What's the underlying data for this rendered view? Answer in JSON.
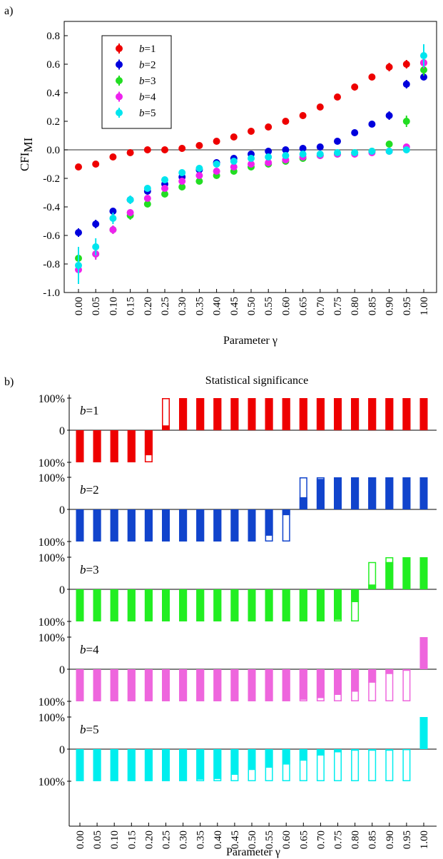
{
  "panel_a": {
    "label": "a)",
    "chart_data": {
      "type": "scatter",
      "xlabel": "Parameter γ",
      "ylabel": "CFI",
      "ylabel_sub": "MI",
      "x": [
        0.0,
        0.05,
        0.1,
        0.15,
        0.2,
        0.25,
        0.3,
        0.35,
        0.4,
        0.45,
        0.5,
        0.55,
        0.6,
        0.65,
        0.7,
        0.75,
        0.8,
        0.85,
        0.9,
        0.95,
        1.0
      ],
      "x_tick_labels": [
        "0.00",
        "0.05",
        "0.10",
        "0.15",
        "0.20",
        "0.25",
        "0.30",
        "0.35",
        "0.40",
        "0.45",
        "0.50",
        "0.55",
        "0.60",
        "0.65",
        "0.70",
        "0.75",
        "0.80",
        "0.85",
        "0.90",
        "0.95",
        "1.00"
      ],
      "ylim": [
        -1.0,
        0.9
      ],
      "y_ticks": [
        -1.0,
        -0.8,
        -0.6,
        -0.4,
        -0.2,
        0.0,
        0.2,
        0.4,
        0.6,
        0.8
      ],
      "y_tick_labels": [
        "-1.0",
        "-0.8",
        "-0.6",
        "-0.4",
        "-0.2",
        "0.0",
        "0.2",
        "0.4",
        "0.6",
        "0.8"
      ],
      "zero_line": true,
      "legend_position": "top-left",
      "series": [
        {
          "name": "b=1",
          "color": "#ee0000",
          "values": [
            -0.12,
            -0.1,
            -0.05,
            -0.02,
            0.0,
            0.0,
            0.01,
            0.03,
            0.06,
            0.09,
            0.13,
            0.16,
            0.2,
            0.24,
            0.3,
            0.37,
            0.44,
            0.51,
            0.58,
            0.6,
            0.61
          ],
          "errors": [
            0.015,
            0.01,
            0.01,
            0.01,
            0.01,
            0.01,
            0.01,
            0.01,
            0.01,
            0.01,
            0.01,
            0.01,
            0.01,
            0.01,
            0.01,
            0.01,
            0.025,
            0.015,
            0.03,
            0.03,
            0.02
          ]
        },
        {
          "name": "b=2",
          "color": "#0000dd",
          "values": [
            -0.58,
            -0.52,
            -0.43,
            -0.35,
            -0.29,
            -0.24,
            -0.19,
            -0.14,
            -0.09,
            -0.06,
            -0.03,
            -0.01,
            0.0,
            0.01,
            0.02,
            0.06,
            0.12,
            0.18,
            0.24,
            0.46,
            0.51
          ],
          "errors": [
            0.03,
            0.03,
            0.02,
            0.02,
            0.02,
            0.02,
            0.01,
            0.01,
            0.01,
            0.01,
            0.01,
            0.01,
            0.01,
            0.01,
            0.01,
            0.015,
            0.02,
            0.02,
            0.03,
            0.03,
            0.02
          ]
        },
        {
          "name": "b=3",
          "color": "#22dd22",
          "values": [
            -0.76,
            -0.73,
            -0.56,
            -0.46,
            -0.38,
            -0.31,
            -0.26,
            -0.22,
            -0.18,
            -0.15,
            -0.12,
            -0.1,
            -0.08,
            -0.06,
            -0.04,
            -0.03,
            -0.02,
            -0.01,
            0.04,
            0.2,
            0.56
          ],
          "errors": [
            0.04,
            0.04,
            0.03,
            0.03,
            0.02,
            0.02,
            0.02,
            0.02,
            0.01,
            0.01,
            0.01,
            0.01,
            0.01,
            0.01,
            0.01,
            0.01,
            0.01,
            0.01,
            0.02,
            0.04,
            0.04
          ]
        },
        {
          "name": "b=4",
          "color": "#ee22ee",
          "values": [
            -0.84,
            -0.73,
            -0.56,
            -0.44,
            -0.34,
            -0.27,
            -0.22,
            -0.18,
            -0.15,
            -0.12,
            -0.1,
            -0.09,
            -0.07,
            -0.05,
            -0.04,
            -0.03,
            -0.03,
            -0.02,
            -0.01,
            0.02,
            0.61
          ],
          "errors": [
            0.04,
            0.04,
            0.03,
            0.02,
            0.02,
            0.02,
            0.02,
            0.01,
            0.01,
            0.01,
            0.01,
            0.01,
            0.01,
            0.01,
            0.01,
            0.01,
            0.01,
            0.01,
            0.01,
            0.01,
            0.04
          ]
        },
        {
          "name": "b=5",
          "color": "#00e5ee",
          "values": [
            -0.81,
            -0.68,
            -0.48,
            -0.35,
            -0.27,
            -0.21,
            -0.16,
            -0.13,
            -0.1,
            -0.08,
            -0.06,
            -0.05,
            -0.04,
            -0.03,
            -0.03,
            -0.02,
            -0.02,
            -0.01,
            -0.01,
            0.0,
            0.66
          ],
          "errors": [
            0.13,
            0.06,
            0.04,
            0.03,
            0.02,
            0.02,
            0.02,
            0.01,
            0.01,
            0.01,
            0.01,
            0.01,
            0.01,
            0.01,
            0.01,
            0.01,
            0.01,
            0.01,
            0.01,
            0.01,
            0.08
          ]
        }
      ]
    }
  },
  "panel_b": {
    "label": "b)",
    "chart_data": {
      "type": "bar",
      "title": "Statistical significance",
      "xlabel": "Parameter γ",
      "x_tick_labels": [
        "0.00",
        "0.05",
        "0.10",
        "0.15",
        "0.20",
        "0.25",
        "0.30",
        "0.35",
        "0.40",
        "0.45",
        "0.50",
        "0.55",
        "0.60",
        "0.65",
        "0.70",
        "0.75",
        "0.80",
        "0.85",
        "0.90",
        "0.95",
        "1.00"
      ],
      "y_tick_labels": [
        "100%",
        "0",
        "100%"
      ],
      "ylim": [
        -100,
        100
      ],
      "note": "each bar: outline = percent of runs with a given sign; filled part = percent significant; positive up, negative down",
      "series": [
        {
          "name": "b=1",
          "prefix": "b",
          "suffix": "=1",
          "color": "#ee0000",
          "outline": [
            -100,
            -100,
            -100,
            -100,
            -100,
            100,
            100,
            100,
            100,
            100,
            100,
            100,
            100,
            100,
            100,
            100,
            100,
            100,
            100,
            100,
            100
          ],
          "fill": [
            -100,
            -100,
            -100,
            -100,
            -78,
            15,
            100,
            100,
            100,
            100,
            100,
            100,
            100,
            100,
            100,
            100,
            100,
            100,
            100,
            100,
            100
          ]
        },
        {
          "name": "b=2",
          "prefix": "b",
          "suffix": "=2",
          "color": "#1144cc",
          "outline": [
            -100,
            -100,
            -100,
            -100,
            -100,
            -100,
            -100,
            -100,
            -100,
            -100,
            -100,
            -100,
            -100,
            100,
            100,
            100,
            100,
            100,
            100,
            100,
            100
          ],
          "fill": [
            -100,
            -100,
            -100,
            -100,
            -100,
            -100,
            -100,
            -100,
            -100,
            -100,
            -100,
            -82,
            -18,
            38,
            95,
            100,
            100,
            100,
            100,
            100,
            100
          ]
        },
        {
          "name": "b=3",
          "prefix": "b",
          "suffix": "=3",
          "color": "#22ee22",
          "outline": [
            -100,
            -100,
            -100,
            -100,
            -100,
            -100,
            -100,
            -100,
            -100,
            -100,
            -100,
            -100,
            -100,
            -100,
            -100,
            -100,
            -100,
            85,
            100,
            100,
            100
          ],
          "fill": [
            -100,
            -100,
            -100,
            -100,
            -100,
            -100,
            -100,
            -100,
            -100,
            -100,
            -100,
            -100,
            -100,
            -100,
            -100,
            -95,
            -40,
            15,
            85,
            100,
            100
          ]
        },
        {
          "name": "b=4",
          "prefix": "b",
          "suffix": "=4",
          "color": "#ee66dd",
          "outline": [
            -100,
            -100,
            -100,
            -100,
            -100,
            -100,
            -100,
            -100,
            -100,
            -100,
            -100,
            -100,
            -100,
            -100,
            -100,
            -100,
            -100,
            -100,
            -100,
            -100,
            100
          ],
          "fill": [
            -100,
            -100,
            -100,
            -100,
            -100,
            -100,
            -100,
            -100,
            -100,
            -100,
            -100,
            -100,
            -100,
            -95,
            -90,
            -80,
            -70,
            -42,
            -15,
            -5,
            100
          ]
        },
        {
          "name": "b=5",
          "prefix": "b",
          "suffix": "=5",
          "color": "#00eeee",
          "outline": [
            -100,
            -100,
            -100,
            -100,
            -100,
            -100,
            -100,
            -100,
            -100,
            -100,
            -100,
            -100,
            -100,
            -100,
            -100,
            -100,
            -100,
            -100,
            -100,
            -100,
            100
          ],
          "fill": [
            -100,
            -100,
            -100,
            -100,
            -100,
            -100,
            -100,
            -95,
            -93,
            -80,
            -65,
            -58,
            -48,
            -36,
            -20,
            -10,
            -5,
            -5,
            -5,
            -3,
            100
          ]
        }
      ]
    }
  }
}
